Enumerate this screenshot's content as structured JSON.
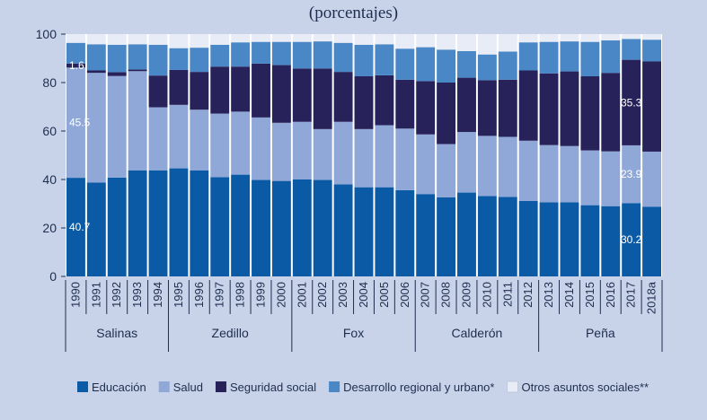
{
  "chart_data": {
    "type": "bar",
    "stacked": true,
    "title": "(porcentajes)",
    "ylim": [
      0,
      100
    ],
    "yticks": [
      0,
      20,
      40,
      60,
      80,
      100
    ],
    "categories": [
      "1990",
      "1991",
      "1992",
      "1993",
      "1994",
      "1995",
      "1996",
      "1997",
      "1998",
      "1999",
      "2000",
      "2001",
      "2002",
      "2003",
      "2004",
      "2005",
      "2006",
      "2007",
      "2008",
      "2009",
      "2010",
      "2011",
      "2012",
      "2013",
      "2014",
      "2015",
      "2016",
      "2017",
      "2018a"
    ],
    "series": [
      {
        "name": "Educación",
        "color": "#0a5aa6",
        "values": [
          40.7,
          38.7,
          40.8,
          43.8,
          43.8,
          44.6,
          43.8,
          41.0,
          42.0,
          39.8,
          39.4,
          40.0,
          39.8,
          38.0,
          36.8,
          36.8,
          35.6,
          34.0,
          32.6,
          34.6,
          33.2,
          32.8,
          31.2,
          30.6,
          30.6,
          29.4,
          29.0,
          30.2,
          28.8
        ]
      },
      {
        "name": "Salud",
        "color": "#8fa8d8",
        "values": [
          45.5,
          45.3,
          41.9,
          40.9,
          26.0,
          26.2,
          25.0,
          26.2,
          26.0,
          25.8,
          24.0,
          23.8,
          21.0,
          25.8,
          24.0,
          25.6,
          25.4,
          24.6,
          22.0,
          25.0,
          24.8,
          24.8,
          24.8,
          23.6,
          23.2,
          22.6,
          22.6,
          23.9,
          22.7
        ]
      },
      {
        "name": "Seguridad social",
        "color": "#27225a",
        "values": [
          1.6,
          1.0,
          1.6,
          0.7,
          13.1,
          14.4,
          15.6,
          19.4,
          18.6,
          22.2,
          23.8,
          22.0,
          25.0,
          20.6,
          21.8,
          20.6,
          20.2,
          22.0,
          25.4,
          22.4,
          23.0,
          23.6,
          29.0,
          29.6,
          30.8,
          30.6,
          32.4,
          35.3,
          37.2
        ]
      },
      {
        "name": "Desarrollo regional y urbano*",
        "color": "#4a87c7",
        "values": [
          8.6,
          10.8,
          11.3,
          10.4,
          12.7,
          9.0,
          10.0,
          9.0,
          10.0,
          9.0,
          9.6,
          11.0,
          11.2,
          12.0,
          13.0,
          12.8,
          12.8,
          14.0,
          13.6,
          11.0,
          10.6,
          11.6,
          11.6,
          13.0,
          12.4,
          14.2,
          13.4,
          8.6,
          9.0
        ]
      },
      {
        "name": "Otros asuntos sociales**",
        "color": "#e8ecf7",
        "values": [
          3.6,
          4.2,
          4.4,
          4.2,
          4.4,
          5.8,
          5.6,
          4.4,
          3.4,
          3.2,
          3.2,
          3.2,
          3.0,
          3.6,
          4.4,
          4.2,
          6.0,
          5.4,
          6.4,
          7.0,
          8.4,
          7.2,
          3.4,
          3.2,
          3.0,
          3.2,
          2.6,
          2.0,
          2.3
        ]
      }
    ],
    "data_labels": [
      {
        "text": "40.7",
        "category": "1990",
        "series": "Educación",
        "align": "left"
      },
      {
        "text": "45.5",
        "category": "1990",
        "series": "Salud",
        "align": "left"
      },
      {
        "text": "1.6",
        "category": "1990",
        "series": "Seguridad social",
        "align": "left"
      },
      {
        "text": "30.2",
        "category": "2017",
        "series": "Educación",
        "align": "center"
      },
      {
        "text": "23.9",
        "category": "2017",
        "series": "Salud",
        "align": "center"
      },
      {
        "text": "35.3",
        "category": "2017",
        "series": "Seguridad social",
        "align": "center"
      }
    ],
    "groups": [
      {
        "label": "Salinas",
        "start": 0,
        "end": 4
      },
      {
        "label": "Zedillo",
        "start": 5,
        "end": 10
      },
      {
        "label": "Fox",
        "start": 11,
        "end": 16
      },
      {
        "label": "Calderón",
        "start": 17,
        "end": 22
      },
      {
        "label": "Peña",
        "start": 23,
        "end": 28
      }
    ],
    "legend_position": "bottom"
  }
}
